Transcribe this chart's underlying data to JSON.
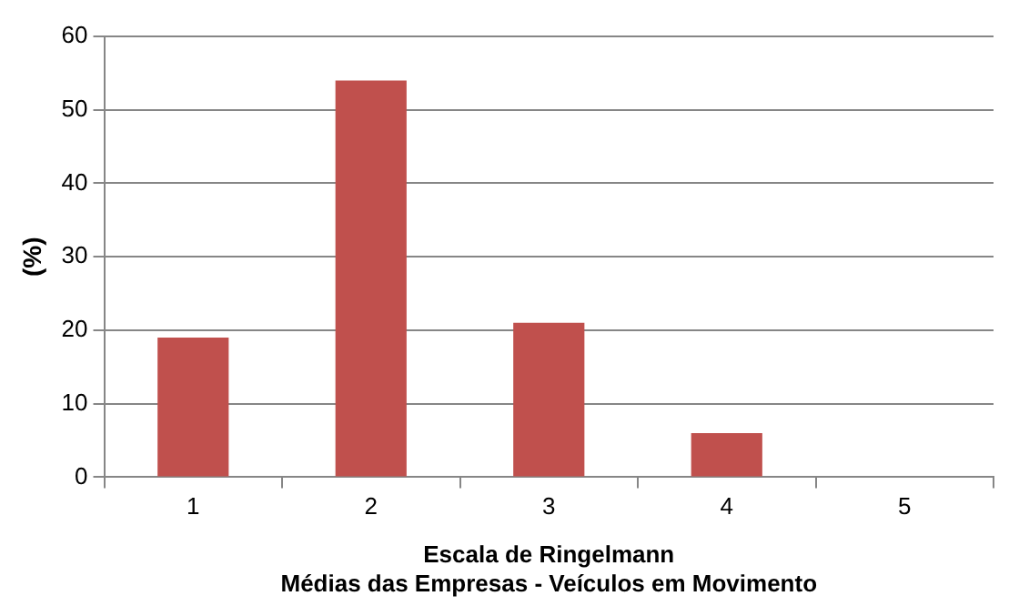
{
  "chart_data": {
    "type": "bar",
    "xlabel": "Escala de Ringelmann\nMédias das Empresas - Veículos em Movimento",
    "ylabel": "(%)",
    "categories": [
      "1",
      "2",
      "3",
      "4",
      "5"
    ],
    "values": [
      19,
      54,
      21,
      6,
      0
    ],
    "color": "#c0504d",
    "ylim": [
      0,
      60
    ],
    "yticks": [
      0,
      10,
      20,
      30,
      40,
      50,
      60
    ],
    "grid": "y",
    "legend": false
  }
}
